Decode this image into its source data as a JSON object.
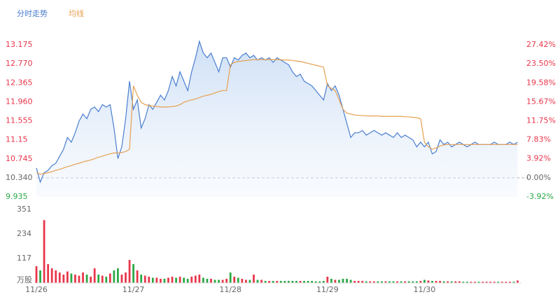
{
  "chart_data": [
    {
      "type": "line",
      "legend_position": "top-left",
      "x": [
        0,
        1,
        2,
        3,
        4,
        5,
        6,
        7,
        8,
        9,
        10,
        11,
        12,
        13,
        14,
        15,
        16,
        17,
        18,
        19,
        20,
        21,
        22,
        23,
        24,
        25,
        26,
        27,
        28,
        29,
        30,
        31,
        32,
        33,
        34,
        35,
        36,
        37,
        38,
        39,
        40,
        41,
        42,
        43,
        44,
        45,
        46,
        47,
        48,
        49,
        50,
        51,
        52,
        53,
        54,
        55,
        56,
        57,
        58,
        59,
        60,
        61,
        62,
        63,
        64,
        65,
        66,
        67,
        68,
        69,
        70,
        71,
        72,
        73,
        74,
        75,
        76,
        77,
        78,
        79,
        80,
        81,
        82,
        83,
        84,
        85,
        86,
        87,
        88,
        89,
        90,
        91,
        92,
        93,
        94,
        95,
        96,
        97,
        98,
        99,
        100,
        101,
        102,
        103,
        104,
        105,
        106,
        107,
        108,
        109,
        110,
        111,
        112,
        113,
        114,
        115,
        116,
        117,
        118,
        119,
        120,
        121,
        122,
        123,
        124
      ],
      "xlim": [
        0,
        125
      ],
      "xticks": [
        {
          "value": 0,
          "label": "11/26"
        },
        {
          "value": 25,
          "label": "11/27"
        },
        {
          "value": 50,
          "label": "11/28"
        },
        {
          "value": 75,
          "label": "11/29"
        },
        {
          "value": 100,
          "label": "11/30"
        }
      ],
      "ylim": [
        9.935,
        13.175
      ],
      "yticks": [
        9.935,
        {
          "value": 10.34,
          "label": "10.340"
        },
        10.745,
        11.15,
        11.555,
        {
          "value": 11.96,
          "label": "11.960"
        },
        12.365,
        {
          "value": 12.77,
          "label": "12.770"
        },
        13.175
      ],
      "y2lim": [
        -3.92,
        27.42
      ],
      "y2ticks": [
        {
          "value": -3.92,
          "label": "-3.92%"
        },
        {
          "value": 0,
          "label": "0.00%"
        },
        {
          "value": 3.92,
          "label": "3.92%"
        },
        {
          "value": 7.83,
          "label": "7.83%"
        },
        {
          "value": 11.75,
          "label": "11.75%"
        },
        {
          "value": 15.67,
          "label": "15.67%"
        },
        {
          "value": 19.58,
          "label": "19.58%"
        },
        {
          "value": 23.5,
          "label": "23.50%"
        },
        {
          "value": 27.42,
          "label": "27.42%"
        }
      ],
      "baseline": 10.34,
      "up_color": "#e8364a",
      "down_color": "#2aa845",
      "series": [
        {
          "name": "分时走势",
          "color": "#4a7fd0",
          "values": [
            10.55,
            10.25,
            10.45,
            10.5,
            10.6,
            10.65,
            10.8,
            10.95,
            11.2,
            11.1,
            11.3,
            11.55,
            11.7,
            11.6,
            11.8,
            11.85,
            11.75,
            11.9,
            11.85,
            11.9,
            11.4,
            10.75,
            11.0,
            11.6,
            12.4,
            11.8,
            12.0,
            11.4,
            11.6,
            11.9,
            11.8,
            11.95,
            12.1,
            12.0,
            12.2,
            12.5,
            12.3,
            12.6,
            12.4,
            12.2,
            12.6,
            12.9,
            13.25,
            13.0,
            12.9,
            13.0,
            12.8,
            12.6,
            12.9,
            12.9,
            12.7,
            12.9,
            12.85,
            12.95,
            13.0,
            12.9,
            12.95,
            12.85,
            12.9,
            12.85,
            12.9,
            12.8,
            12.9,
            12.85,
            12.8,
            12.75,
            12.6,
            12.5,
            12.55,
            12.4,
            12.35,
            12.3,
            12.2,
            12.1,
            12.0,
            12.35,
            12.2,
            12.3,
            12.1,
            11.8,
            11.5,
            11.2,
            11.3,
            11.3,
            11.35,
            11.25,
            11.3,
            11.35,
            11.3,
            11.25,
            11.3,
            11.25,
            11.2,
            11.3,
            11.2,
            11.25,
            11.2,
            11.15,
            11.0,
            11.1,
            11.0,
            11.1,
            10.85,
            10.9,
            11.15,
            11.05,
            11.1,
            11.0,
            11.05,
            11.1,
            11.05,
            11.0,
            11.05,
            11.1,
            11.05,
            11.05,
            11.05,
            11.05,
            11.1,
            11.05,
            11.05,
            11.05,
            11.1,
            11.05,
            11.1
          ]
        },
        {
          "name": "均线",
          "color": "#e8a050",
          "values": [
            10.45,
            10.42,
            10.43,
            10.45,
            10.47,
            10.5,
            10.52,
            10.55,
            10.58,
            10.6,
            10.63,
            10.65,
            10.68,
            10.7,
            10.72,
            10.75,
            10.78,
            10.8,
            10.83,
            10.85,
            10.87,
            10.87,
            10.88,
            10.9,
            10.95,
            12.3,
            12.1,
            11.95,
            11.9,
            11.88,
            11.87,
            11.86,
            11.85,
            11.85,
            11.85,
            11.86,
            11.87,
            11.9,
            11.95,
            11.98,
            12.0,
            12.02,
            12.05,
            12.08,
            12.1,
            12.12,
            12.15,
            12.18,
            12.2,
            12.2,
            12.75,
            12.8,
            12.82,
            12.83,
            12.84,
            12.85,
            12.86,
            12.86,
            12.86,
            12.86,
            12.86,
            12.86,
            12.86,
            12.86,
            12.85,
            12.85,
            12.84,
            12.83,
            12.82,
            12.8,
            12.78,
            12.76,
            12.74,
            12.72,
            12.7,
            12.3,
            12.25,
            12.2,
            12.0,
            11.8,
            11.72,
            11.7,
            11.68,
            11.67,
            11.67,
            11.66,
            11.66,
            11.66,
            11.66,
            11.65,
            11.65,
            11.65,
            11.65,
            11.65,
            11.65,
            11.64,
            11.64,
            11.63,
            11.62,
            11.6,
            11.1,
            11.0,
            10.95,
            10.98,
            11.02,
            11.04,
            11.05,
            11.05,
            11.05,
            11.05,
            11.05,
            11.05,
            11.05,
            11.05,
            11.05,
            11.05,
            11.05,
            11.05,
            11.05,
            11.05,
            11.05,
            11.05,
            11.05,
            11.05,
            11.05
          ]
        }
      ]
    },
    {
      "type": "bar",
      "ylim": [
        0,
        351
      ],
      "yticks": [
        117,
        234,
        351
      ],
      "y_label": "万股",
      "values": [
        80,
        60,
        300,
        90,
        70,
        60,
        50,
        40,
        55,
        45,
        40,
        35,
        50,
        40,
        30,
        70,
        40,
        35,
        30,
        45,
        60,
        70,
        40,
        50,
        110,
        90,
        60,
        40,
        35,
        30,
        25,
        25,
        20,
        20,
        25,
        30,
        25,
        30,
        25,
        20,
        30,
        35,
        40,
        25,
        20,
        20,
        15,
        15,
        15,
        20,
        50,
        30,
        25,
        20,
        15,
        15,
        40,
        15,
        15,
        10,
        10,
        10,
        10,
        10,
        10,
        10,
        10,
        10,
        10,
        10,
        10,
        10,
        8,
        8,
        10,
        30,
        20,
        15,
        15,
        20,
        20,
        15,
        10,
        10,
        10,
        8,
        8,
        8,
        8,
        8,
        8,
        8,
        8,
        8,
        8,
        8,
        8,
        8,
        8,
        10,
        15,
        12,
        10,
        10,
        10,
        8,
        8,
        8,
        8,
        8,
        6,
        6,
        6,
        6,
        6,
        6,
        6,
        6,
        6,
        6,
        6,
        6,
        6,
        6,
        12
      ]
    }
  ]
}
